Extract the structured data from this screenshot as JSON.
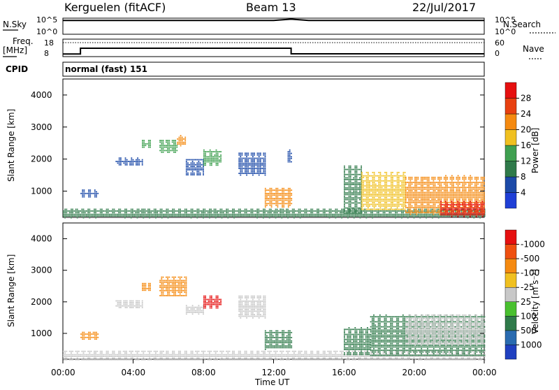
{
  "header": {
    "station": "Kerguelen (fitACF)",
    "beam": "Beam 13",
    "date": "22/Jul/2017"
  },
  "top_panels": {
    "nsky_label": "N.Sky",
    "nsky_ticks": [
      "10^5",
      "10^0"
    ],
    "nsearch_label": "N.Search",
    "nsearch_ticks": [
      "10^5",
      "10^0"
    ],
    "freq_label_line1": "Freq.",
    "freq_label_line2": "[MHz]",
    "freq_ticks": [
      "18",
      "8"
    ],
    "nave_label": "Nave",
    "nave_ticks": [
      "60",
      "0"
    ],
    "cpid_label": "CPID",
    "cpid_value": "normal (fast) 151"
  },
  "colors": {
    "power_scale": [
      "#1f3fd6",
      "#1c4aa8",
      "#2f7a4a",
      "#3fa050",
      "#f0c020",
      "#f58a10",
      "#e84010",
      "#e61010"
    ],
    "velocity_scale": [
      "#2040c0",
      "#2a6bb0",
      "#2f7a4a",
      "#49c02f",
      "#c8c8c8",
      "#f0c020",
      "#f58a10",
      "#ef5010",
      "#e61010"
    ]
  },
  "chart_data": [
    {
      "type": "line",
      "title": "Kerguelen (fitACF)",
      "panel": "N.Sky / N.Search",
      "series": [
        {
          "name": "N.Sky",
          "x": [
            "00:00",
            "12:00",
            "13:00",
            "14:00",
            "24:00"
          ],
          "y": [
            20000,
            20000,
            50000,
            20000,
            20000
          ]
        },
        {
          "name": "N.Search",
          "x": [
            "00:00",
            "24:00"
          ],
          "y": [
            1,
            1
          ]
        }
      ],
      "xlim": [
        "00:00",
        "24:00"
      ]
    },
    {
      "type": "line",
      "panel": "Freq. / Nave",
      "series": [
        {
          "name": "Freq.",
          "x": [
            "00:00",
            "01:00",
            "01:00",
            "13:00",
            "13:00",
            "24:00"
          ],
          "y": [
            9.5,
            9.5,
            12.8,
            12.8,
            9.6,
            9.6
          ]
        },
        {
          "name": "Nave",
          "x": [
            "00:00",
            "01:00",
            "13:00",
            "24:00"
          ],
          "y": [
            48,
            48,
            48,
            48
          ]
        }
      ],
      "ylim": [
        8,
        18
      ],
      "y2lim": [
        0,
        60
      ]
    },
    {
      "type": "heatmap",
      "title": "Beam 13",
      "ylabel": "Slant Range [km]",
      "colorbar_label": "Power [dB]",
      "colorbar_ticks": [
        4,
        8,
        12,
        16,
        20,
        24,
        28
      ],
      "ylim": [
        180,
        4500
      ],
      "yticks": [
        1000,
        2000,
        3000,
        4000
      ],
      "regions": [
        {
          "t": [
            0.0,
            24.0
          ],
          "r": [
            180,
            450
          ],
          "value": 8
        },
        {
          "t": [
            1.0,
            2.0
          ],
          "r": [
            820,
            1050
          ],
          "value": 6
        },
        {
          "t": [
            3.0,
            4.5
          ],
          "r": [
            1800,
            2050
          ],
          "value": 6
        },
        {
          "t": [
            4.5,
            5.0
          ],
          "r": [
            2350,
            2600
          ],
          "value": 14
        },
        {
          "t": [
            5.5,
            6.5
          ],
          "r": [
            2200,
            2600
          ],
          "value": 14
        },
        {
          "t": [
            6.5,
            7.0
          ],
          "r": [
            2400,
            2750
          ],
          "value": 20
        },
        {
          "t": [
            7.0,
            8.0
          ],
          "r": [
            1500,
            2000
          ],
          "value": 6
        },
        {
          "t": [
            8.0,
            9.0
          ],
          "r": [
            1800,
            2300
          ],
          "value": 14
        },
        {
          "t": [
            10.0,
            11.5
          ],
          "r": [
            1500,
            2200
          ],
          "value": 6
        },
        {
          "t": [
            11.5,
            13.0
          ],
          "r": [
            500,
            1100
          ],
          "value": 20
        },
        {
          "t": [
            12.8,
            13.0
          ],
          "r": [
            1900,
            2300
          ],
          "value": 6
        },
        {
          "t": [
            16.0,
            17.0
          ],
          "r": [
            300,
            1800
          ],
          "value": 8
        },
        {
          "t": [
            17.0,
            19.5
          ],
          "r": [
            400,
            1600
          ],
          "value": 16
        },
        {
          "t": [
            19.5,
            24.0
          ],
          "r": [
            250,
            1500
          ],
          "value": 22
        },
        {
          "t": [
            21.5,
            24.0
          ],
          "r": [
            200,
            700
          ],
          "value": 28
        }
      ]
    },
    {
      "type": "heatmap",
      "ylabel": "Slant Range [km]",
      "xlabel": "Time UT",
      "xticks": [
        "00:00",
        "04:00",
        "08:00",
        "12:00",
        "16:00",
        "20:00",
        "00:00"
      ],
      "colorbar_label": "Velocity [m s⁻¹]",
      "colorbar_ticks": [
        1000,
        500,
        100,
        25,
        -25,
        -100,
        -500,
        -1000
      ],
      "ylim": [
        180,
        4500
      ],
      "yticks": [
        1000,
        2000,
        3000,
        4000
      ],
      "regions": [
        {
          "t": [
            0.0,
            24.0
          ],
          "r": [
            180,
            450
          ],
          "value": -25
        },
        {
          "t": [
            1.0,
            2.0
          ],
          "r": [
            800,
            1050
          ],
          "value": -300
        },
        {
          "t": [
            3.0,
            4.5
          ],
          "r": [
            1800,
            2050
          ],
          "value": 0
        },
        {
          "t": [
            4.5,
            5.0
          ],
          "r": [
            2350,
            2600
          ],
          "value": -300
        },
        {
          "t": [
            5.5,
            7.0
          ],
          "r": [
            2200,
            2800
          ],
          "value": -300
        },
        {
          "t": [
            7.0,
            8.0
          ],
          "r": [
            1600,
            1900
          ],
          "value": 0
        },
        {
          "t": [
            8.0,
            9.0
          ],
          "r": [
            1800,
            2200
          ],
          "value": -1000
        },
        {
          "t": [
            10.0,
            11.5
          ],
          "r": [
            1500,
            2200
          ],
          "value": 0
        },
        {
          "t": [
            11.5,
            13.0
          ],
          "r": [
            500,
            1100
          ],
          "value": 100
        },
        {
          "t": [
            16.0,
            17.5
          ],
          "r": [
            300,
            1200
          ],
          "value": 100
        },
        {
          "t": [
            17.5,
            24.0
          ],
          "r": [
            300,
            1600
          ],
          "value": 150
        },
        {
          "t": [
            19.5,
            24.0
          ],
          "r": [
            600,
            1600
          ],
          "value": 0
        }
      ]
    }
  ]
}
